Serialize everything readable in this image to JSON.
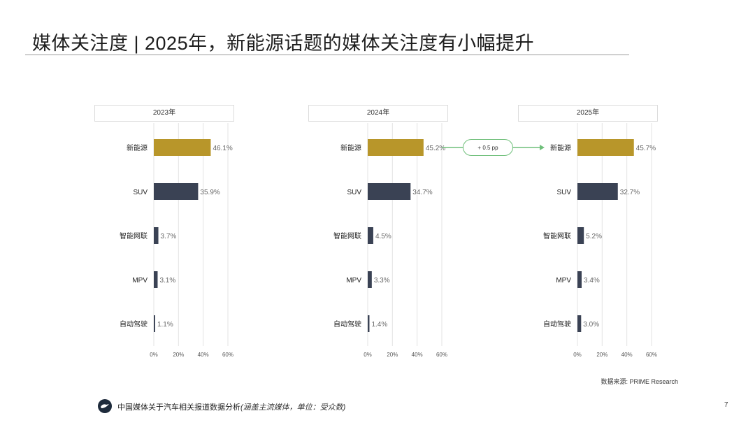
{
  "page": {
    "title": "媒体关注度 | 2025年，新能源话题的媒体关注度有小幅提升",
    "source": "数据来源: PRIME Research",
    "footer_main": "中国媒体关于汽车相关报道数据分析",
    "footer_note": "(涵盖主流媒体，单位：受众数)",
    "page_number": "7",
    "change_label": "+ 0.5 pp"
  },
  "colors": {
    "highlight_bar": "#b8962a",
    "bar": "#3a4254",
    "bubble_border": "#6fbf7a",
    "grid": "#e3e3e3"
  },
  "icons": {
    "logo": "company-logo-icon"
  },
  "chart_data": [
    {
      "type": "bar",
      "orientation": "horizontal",
      "title": "2023年",
      "categories": [
        "新能源",
        "SUV",
        "智能网联",
        "MPV",
        "自动驾驶"
      ],
      "values": [
        46.1,
        35.9,
        3.7,
        3.1,
        1.1
      ],
      "value_labels": [
        "46.1%",
        "35.9%",
        "3.7%",
        "3.1%",
        "1.1%"
      ],
      "xlim": [
        0,
        60
      ],
      "xticks": [
        "0%",
        "20%",
        "40%",
        "60%"
      ],
      "grid": true
    },
    {
      "type": "bar",
      "orientation": "horizontal",
      "title": "2024年",
      "categories": [
        "新能源",
        "SUV",
        "智能网联",
        "MPV",
        "自动驾驶"
      ],
      "values": [
        45.2,
        34.7,
        4.5,
        3.3,
        1.4
      ],
      "value_labels": [
        "45.2%",
        "34.7%",
        "4.5%",
        "3.3%",
        "1.4%"
      ],
      "xlim": [
        0,
        60
      ],
      "xticks": [
        "0%",
        "20%",
        "40%",
        "60%"
      ],
      "grid": true
    },
    {
      "type": "bar",
      "orientation": "horizontal",
      "title": "2025年",
      "categories": [
        "新能源",
        "SUV",
        "智能网联",
        "MPV",
        "自动驾驶"
      ],
      "values": [
        45.7,
        32.7,
        5.2,
        3.4,
        3.0
      ],
      "value_labels": [
        "45.7%",
        "32.7%",
        "5.2%",
        "3.4%",
        "3.0%"
      ],
      "xlim": [
        0,
        60
      ],
      "xticks": [
        "0%",
        "20%",
        "40%",
        "60%"
      ],
      "grid": true
    }
  ]
}
